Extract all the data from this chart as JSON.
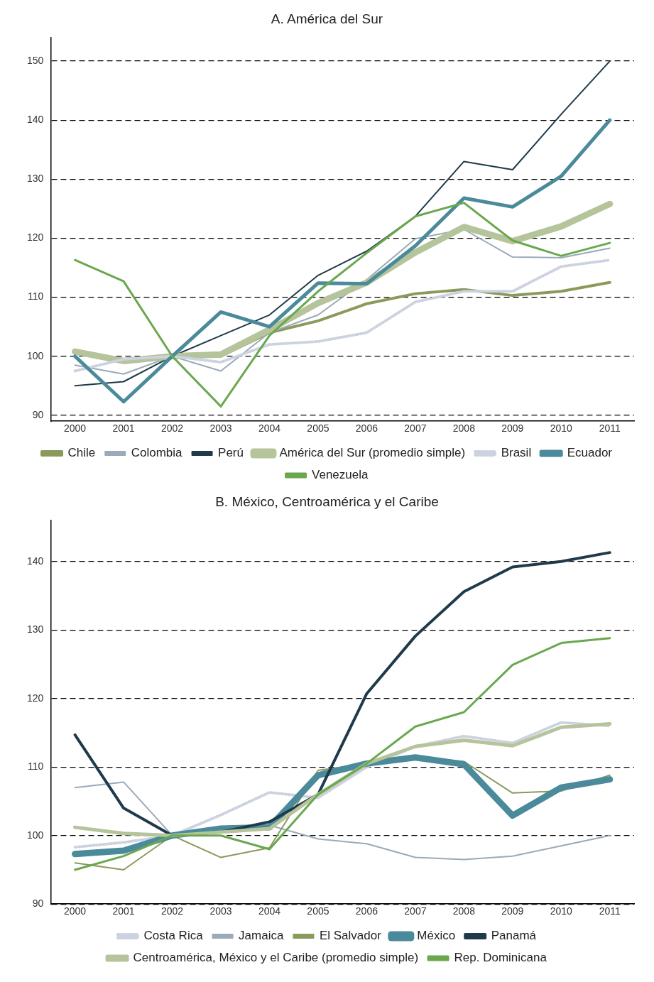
{
  "chart_data": [
    {
      "type": "line",
      "title": "A. América del Sur",
      "categories": [
        "2000",
        "2001",
        "2002",
        "2003",
        "2004",
        "2005",
        "2006",
        "2007",
        "2008",
        "2009",
        "2010",
        "2011"
      ],
      "ylim": [
        89,
        154
      ],
      "yticks": [
        90,
        100,
        110,
        120,
        130,
        140,
        150
      ],
      "grid": "y",
      "legend": "bottom",
      "marker": "none",
      "series": [
        {
          "name": "Chile",
          "color": "#8a9a5b",
          "values": [
            100.5,
            99.5,
            100,
            100,
            104,
            106,
            108.9,
            110.6,
            111.3,
            110.3,
            111,
            112.5
          ]
        },
        {
          "name": "Colombia",
          "color": "#9aaab8",
          "values": [
            98.5,
            97,
            100,
            97.5,
            104,
            107,
            113,
            119.9,
            121.5,
            116.8,
            116.7,
            118.3
          ]
        },
        {
          "name": "Perú",
          "color": "#1f3a4a",
          "values": [
            95,
            95.7,
            100,
            103.5,
            107,
            113.7,
            117.8,
            123.7,
            133,
            131.6,
            141,
            150
          ]
        },
        {
          "name": "América del Sur (promedio simple)",
          "color": "#b5c49a",
          "values": [
            100.8,
            99.2,
            100,
            100.3,
            104.5,
            109,
            112.5,
            117.6,
            121.9,
            119.5,
            122,
            125.8
          ]
        },
        {
          "name": "Brasil",
          "color": "#cdd2e0",
          "line_style": "dotted",
          "values": [
            97.5,
            99.5,
            100,
            99,
            102,
            102.5,
            104,
            109.2,
            111,
            111,
            115.2,
            116.3
          ]
        },
        {
          "name": "Ecuador",
          "color": "#4a8a9a",
          "values": [
            100,
            92.3,
            100,
            107.5,
            105,
            112.4,
            112.3,
            118.7,
            126.8,
            125.3,
            130.5,
            140
          ]
        },
        {
          "name": "Venezuela",
          "color": "#6aa84f",
          "values": [
            116.3,
            112.7,
            100,
            91.5,
            103.5,
            111,
            117.5,
            123.7,
            126,
            119.6,
            117,
            119.2
          ]
        }
      ]
    },
    {
      "type": "line",
      "title": "B. México, Centroamérica y el Caribe",
      "categories": [
        "2000",
        "2001",
        "2002",
        "2003",
        "2004",
        "2005",
        "2006",
        "2007",
        "2008",
        "2009",
        "2010",
        "2011"
      ],
      "ylim": [
        90,
        146
      ],
      "yticks": [
        90,
        100,
        110,
        120,
        130,
        140
      ],
      "grid": "y",
      "legend": "bottom",
      "marker": "none",
      "series": [
        {
          "name": "Costa Rica",
          "color": "#cdd2e0",
          "line_style": "dotted",
          "values": [
            98.3,
            99,
            100,
            103,
            106.3,
            105.5,
            110,
            113,
            114.5,
            113.5,
            116.5,
            116
          ]
        },
        {
          "name": "Jamaica",
          "color": "#9aaab8",
          "values": [
            107,
            107.8,
            100,
            100.5,
            101.5,
            99.5,
            98.8,
            96.8,
            96.5,
            97,
            98.5,
            100
          ]
        },
        {
          "name": "El Salvador",
          "color": "#8a9a5b",
          "values": [
            96,
            95,
            100,
            96.8,
            98.2,
            109.5,
            110.5,
            111.5,
            110.8,
            106.2,
            106.5,
            108.8
          ]
        },
        {
          "name": "México",
          "color": "#4a8a9a",
          "values": [
            97.3,
            97.8,
            100,
            101,
            101.2,
            108.8,
            110.5,
            111.4,
            110.4,
            102.9,
            107,
            108.2
          ]
        },
        {
          "name": "Panamá",
          "color": "#1f3a4a",
          "values": [
            114.7,
            104,
            100,
            100.5,
            102,
            106,
            120.7,
            129.1,
            135.6,
            139.2,
            140,
            141.3
          ]
        },
        {
          "name": "Centroamérica, México y el Caribe (promedio simple)",
          "color": "#b5c49a",
          "values": [
            101.2,
            100.3,
            100,
            100.5,
            101,
            106,
            110.5,
            113,
            113.9,
            113.1,
            115.8,
            116.3
          ]
        },
        {
          "name": "Rep. Dominicana",
          "color": "#6aa84f",
          "values": [
            95,
            97,
            100,
            100,
            98,
            106,
            110.5,
            115.9,
            118,
            124.9,
            128.1,
            128.8
          ]
        }
      ]
    }
  ]
}
